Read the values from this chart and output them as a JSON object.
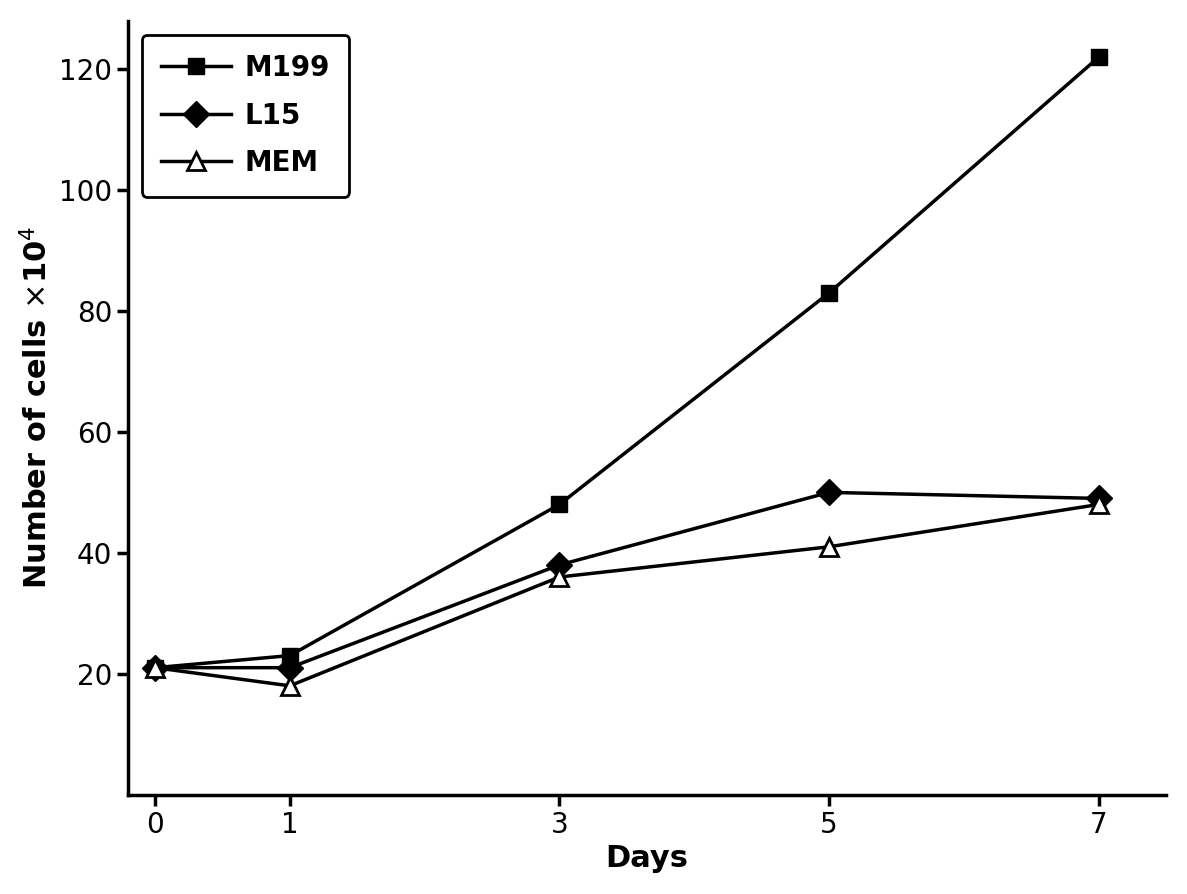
{
  "days": [
    0,
    1,
    3,
    5,
    7
  ],
  "M199": [
    21,
    23,
    48,
    83,
    122
  ],
  "L15": [
    21,
    21,
    38,
    50,
    49
  ],
  "MEM": [
    21,
    18,
    36,
    41,
    48
  ],
  "xlabel": "Days",
  "ylabel": "Number of cells ×10⁴",
  "ylim": [
    0,
    128
  ],
  "yticks": [
    20,
    40,
    60,
    80,
    100,
    120
  ],
  "xticks": [
    0,
    1,
    3,
    5,
    7
  ],
  "legend_labels": [
    "M199",
    "L15",
    "MEM"
  ],
  "line_color": "#000000",
  "bg_color": "#ffffff",
  "label_fontsize": 22,
  "tick_fontsize": 20,
  "legend_fontsize": 20
}
